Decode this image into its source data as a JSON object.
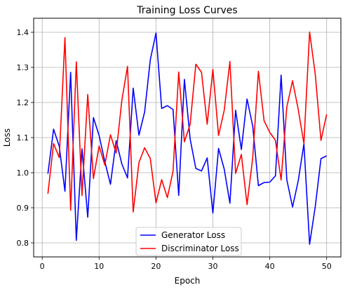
{
  "chart_data": {
    "type": "line",
    "title": "Training Loss Curves",
    "xlabel": "Epoch",
    "ylabel": "Loss",
    "xlim": [
      -1.5,
      52.5
    ],
    "ylim": [
      0.76,
      1.44
    ],
    "grid": true,
    "legend_position": "lower-center",
    "x_ticks": [
      0,
      10,
      20,
      30,
      40,
      50
    ],
    "x_tick_labels": [
      "0",
      "10",
      "20",
      "30",
      "40",
      "50"
    ],
    "y_ticks": [
      0.8,
      0.9,
      1.0,
      1.1,
      1.2,
      1.3,
      1.4
    ],
    "y_tick_labels": [
      "0.8",
      "0.9",
      "1.0",
      "1.1",
      "1.2",
      "1.3",
      "1.4"
    ],
    "x": [
      1,
      2,
      3,
      4,
      5,
      6,
      7,
      8,
      9,
      10,
      11,
      12,
      13,
      14,
      15,
      16,
      17,
      18,
      19,
      20,
      21,
      22,
      23,
      24,
      25,
      26,
      27,
      28,
      29,
      30,
      31,
      32,
      33,
      34,
      35,
      36,
      37,
      38,
      39,
      40,
      41,
      42,
      43,
      44,
      45,
      46,
      47,
      48,
      49,
      50
    ],
    "series": [
      {
        "name": "Generator Loss",
        "color": "#0000ff",
        "values": [
          0.997,
          1.124,
          1.075,
          0.947,
          1.286,
          0.807,
          1.068,
          0.873,
          1.157,
          1.106,
          1.032,
          0.967,
          1.091,
          1.025,
          0.985,
          1.241,
          1.107,
          1.173,
          1.322,
          1.398,
          1.183,
          1.191,
          1.18,
          0.935,
          1.266,
          1.096,
          1.012,
          1.005,
          1.042,
          0.885,
          1.069,
          1.01,
          0.913,
          1.178,
          1.066,
          1.21,
          1.133,
          0.963,
          0.972,
          0.973,
          0.991,
          1.278,
          0.98,
          0.902,
          0.977,
          1.082,
          0.796,
          0.904,
          1.04,
          1.048
        ]
      },
      {
        "name": "Discriminator Loss",
        "color": "#ff0000",
        "values": [
          0.94,
          1.083,
          1.043,
          1.385,
          0.893,
          1.316,
          0.935,
          1.223,
          0.983,
          1.076,
          1.022,
          1.108,
          1.056,
          1.206,
          1.303,
          0.888,
          1.029,
          1.071,
          1.04,
          0.914,
          0.98,
          0.929,
          1.004,
          1.287,
          1.088,
          1.138,
          1.309,
          1.286,
          1.138,
          1.294,
          1.106,
          1.178,
          1.317,
          0.998,
          1.052,
          0.909,
          1.042,
          1.289,
          1.148,
          1.115,
          1.092,
          0.979,
          1.187,
          1.262,
          1.18,
          1.083,
          1.401,
          1.28,
          1.092,
          1.166
        ]
      }
    ]
  }
}
